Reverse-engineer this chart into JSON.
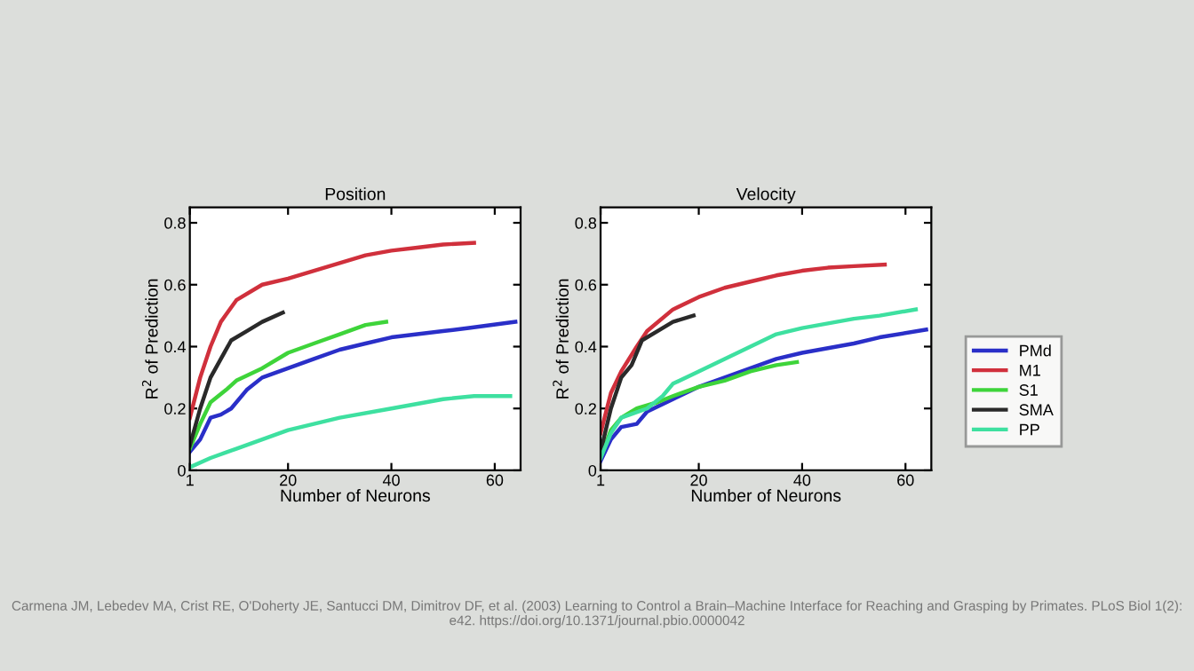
{
  "chart_data": [
    {
      "type": "line",
      "title": "Position",
      "xlabel": "Number of Neurons",
      "ylabel": "R$^{2}$ of Prediction",
      "xlim": [
        1,
        65
      ],
      "ylim": [
        0,
        0.85
      ],
      "xticks": [
        1,
        20,
        40,
        60
      ],
      "yticks": [
        0,
        0.2,
        0.4,
        0.6,
        0.8
      ],
      "grid": false,
      "legend": false,
      "annotations": [
        "Carmena JM, Lebedev MA, Crist RE, O'Doherty JE, Santucci DM, Dimitrov DF, et al. (2003) Learning to Control a Brain–Machine Interface for Reaching and Grasping by Primates. PLoS Biol 1(2): e42. https://doi.org/10.1371/journal.pbio.0000042"
      ],
      "series": [
        {
          "color": "#2a2fc8",
          "x": [
            1,
            3,
            5,
            7,
            9,
            12,
            15,
            20,
            25,
            30,
            35,
            40,
            50,
            55,
            64
          ],
          "values": [
            0.06,
            0.1,
            0.17,
            0.18,
            0.2,
            0.26,
            0.3,
            0.33,
            0.36,
            0.39,
            0.41,
            0.43,
            0.45,
            0.46,
            0.48
          ]
        },
        {
          "color": "#d0303c",
          "x": [
            1,
            3,
            5,
            7,
            10,
            15,
            20,
            25,
            30,
            35,
            40,
            45,
            50,
            56
          ],
          "values": [
            0.17,
            0.3,
            0.4,
            0.48,
            0.55,
            0.6,
            0.62,
            0.645,
            0.67,
            0.695,
            0.71,
            0.72,
            0.73,
            0.735
          ]
        },
        {
          "color": "#3ed43a",
          "x": [
            1,
            3,
            5,
            8,
            10,
            15,
            20,
            25,
            30,
            35,
            39
          ],
          "values": [
            0.07,
            0.15,
            0.22,
            0.26,
            0.29,
            0.33,
            0.38,
            0.41,
            0.44,
            0.47,
            0.48
          ]
        },
        {
          "color": "#2a2a2a",
          "x": [
            1,
            3,
            5,
            7,
            9,
            12,
            15,
            19
          ],
          "values": [
            0.08,
            0.2,
            0.3,
            0.36,
            0.42,
            0.45,
            0.48,
            0.51
          ]
        },
        {
          "color": "#3ee0a0",
          "x": [
            1,
            5,
            10,
            15,
            20,
            30,
            40,
            50,
            56,
            63
          ],
          "values": [
            0.01,
            0.04,
            0.07,
            0.1,
            0.13,
            0.17,
            0.2,
            0.23,
            0.24,
            0.24
          ]
        }
      ]
    },
    {
      "type": "line",
      "title": "Velocity",
      "xlabel": "Number of Neurons",
      "ylabel": "R$^{2}$ of Prediction",
      "xlim": [
        1,
        65
      ],
      "ylim": [
        0,
        0.85
      ],
      "xticks": [
        1,
        20,
        40,
        60
      ],
      "yticks": [
        0,
        0.2,
        0.4,
        0.6,
        0.8
      ],
      "grid": false,
      "legend": "right",
      "series": [
        {
          "name": "PMd",
          "color": "#2a2fc8",
          "x": [
            1,
            3,
            5,
            8,
            10,
            15,
            20,
            25,
            30,
            35,
            40,
            50,
            55,
            64
          ],
          "values": [
            0.03,
            0.1,
            0.14,
            0.15,
            0.19,
            0.23,
            0.27,
            0.3,
            0.33,
            0.36,
            0.38,
            0.41,
            0.43,
            0.455
          ]
        },
        {
          "name": "M1",
          "color": "#d0303c",
          "x": [
            1,
            3,
            5,
            8,
            10,
            15,
            20,
            25,
            30,
            35,
            40,
            45,
            50,
            56
          ],
          "values": [
            0.12,
            0.25,
            0.32,
            0.4,
            0.45,
            0.52,
            0.56,
            0.59,
            0.61,
            0.63,
            0.645,
            0.655,
            0.66,
            0.665
          ]
        },
        {
          "name": "S1",
          "color": "#3ed43a",
          "x": [
            1,
            3,
            5,
            8,
            12,
            15,
            20,
            25,
            30,
            35,
            39
          ],
          "values": [
            0.04,
            0.13,
            0.17,
            0.2,
            0.22,
            0.24,
            0.27,
            0.29,
            0.32,
            0.34,
            0.35
          ]
        },
        {
          "name": "SMA",
          "color": "#2a2a2a",
          "x": [
            1,
            3,
            5,
            7,
            9,
            12,
            15,
            19
          ],
          "values": [
            0.06,
            0.2,
            0.3,
            0.34,
            0.42,
            0.45,
            0.48,
            0.5
          ]
        },
        {
          "name": "PP",
          "color": "#3ee0a0",
          "x": [
            1,
            3,
            5,
            10,
            13,
            15,
            20,
            25,
            30,
            35,
            40,
            50,
            55,
            62
          ],
          "values": [
            0.04,
            0.12,
            0.17,
            0.2,
            0.24,
            0.28,
            0.32,
            0.36,
            0.4,
            0.44,
            0.46,
            0.49,
            0.5,
            0.52
          ]
        }
      ]
    }
  ]
}
